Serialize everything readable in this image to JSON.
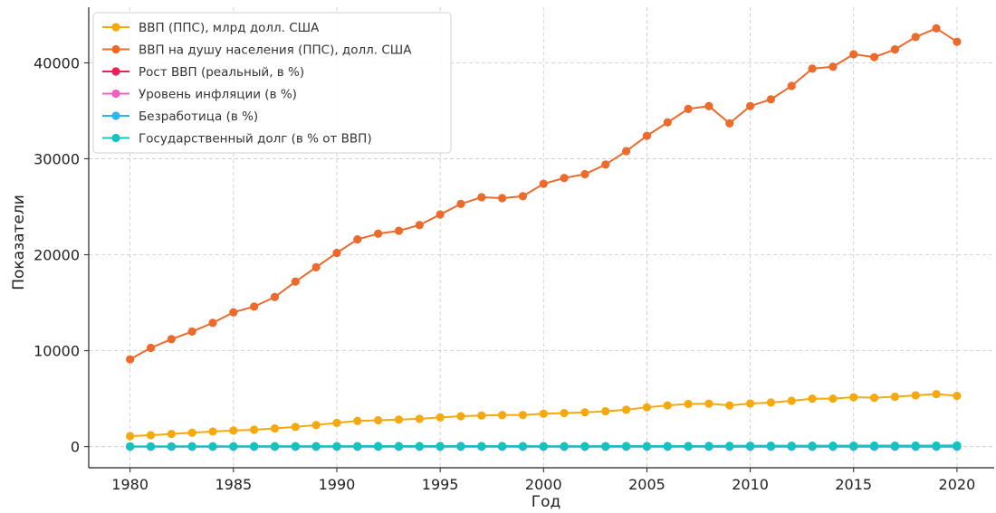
{
  "chart_data": {
    "type": "line",
    "title": "",
    "xlabel": "Год",
    "ylabel": "Показатели",
    "xlim": [
      1978,
      2021.8
    ],
    "ylim": [
      -2200,
      45800
    ],
    "xticks": [
      1980,
      1985,
      1990,
      1995,
      2000,
      2005,
      2010,
      2015,
      2020
    ],
    "yticks": [
      0,
      10000,
      20000,
      30000,
      40000
    ],
    "grid": true,
    "legend_position": "top-left",
    "x": [
      1980,
      1981,
      1982,
      1983,
      1984,
      1985,
      1986,
      1987,
      1988,
      1989,
      1990,
      1991,
      1992,
      1993,
      1994,
      1995,
      1996,
      1997,
      1998,
      1999,
      2000,
      2001,
      2002,
      2003,
      2004,
      2005,
      2006,
      2007,
      2008,
      2009,
      2010,
      2011,
      2012,
      2013,
      2014,
      2015,
      2016,
      2017,
      2018,
      2019,
      2020
    ],
    "series": [
      {
        "name": "ВВП (ППС), млрд долл. США",
        "color": "#f5a90f",
        "values": [
          1100,
          1200,
          1330,
          1450,
          1580,
          1680,
          1760,
          1900,
          2060,
          2250,
          2480,
          2680,
          2750,
          2820,
          2900,
          3050,
          3170,
          3250,
          3290,
          3300,
          3430,
          3500,
          3580,
          3680,
          3850,
          4100,
          4300,
          4450,
          4480,
          4300,
          4500,
          4600,
          4780,
          5000,
          5000,
          5150,
          5100,
          5200,
          5350,
          5480,
          5300
        ]
      },
      {
        "name": "ВВП на душу населения (ППС), долл. США",
        "color": "#ec6a2c",
        "values": [
          9100,
          10300,
          11200,
          12000,
          12900,
          14000,
          14600,
          15600,
          17200,
          18700,
          20200,
          21600,
          22200,
          22500,
          23100,
          24200,
          25300,
          26000,
          25900,
          26100,
          27400,
          28000,
          28400,
          29400,
          30800,
          32400,
          33800,
          35200,
          35500,
          33700,
          35500,
          36200,
          37600,
          39400,
          39600,
          40900,
          40600,
          41400,
          42700,
          43600,
          42200
        ]
      },
      {
        "name": "Рост ВВП (реальный, в %)",
        "color": "#e2245a",
        "values": [
          3.2,
          2.1,
          -0.5,
          4.6,
          6.2,
          4.2,
          3.5,
          3.5,
          4.2,
          3.7,
          1.9,
          -0.1,
          3.5,
          2.8,
          4.0,
          2.7,
          3.8,
          4.4,
          4.5,
          4.8,
          4.1,
          1.0,
          1.7,
          2.8,
          3.9,
          3.5,
          2.9,
          2.0,
          0.1,
          -2.6,
          2.7,
          1.6,
          2.3,
          2.1,
          2.5,
          2.9,
          1.8,
          2.5,
          2.9,
          2.3,
          -3.4
        ]
      },
      {
        "name": "Уровень инфляции (в %)",
        "color": "#f25ec3",
        "values": [
          13.5,
          10.3,
          6.1,
          3.2,
          4.3,
          3.5,
          1.9,
          3.7,
          4.1,
          4.8,
          5.4,
          4.2,
          3.0,
          3.0,
          2.6,
          2.8,
          2.9,
          2.3,
          1.6,
          2.2,
          3.4,
          2.8,
          1.6,
          2.3,
          2.7,
          3.4,
          3.2,
          2.9,
          3.8,
          -0.4,
          1.6,
          3.2,
          2.1,
          1.5,
          1.6,
          0.1,
          1.3,
          2.1,
          2.4,
          1.8,
          1.2
        ]
      },
      {
        "name": "Безработица (в %)",
        "color": "#2eb6e8",
        "values": [
          7.1,
          7.6,
          9.7,
          9.6,
          7.5,
          7.2,
          7.0,
          6.2,
          5.5,
          5.3,
          5.6,
          6.8,
          7.5,
          6.9,
          6.1,
          5.6,
          5.4,
          4.9,
          4.5,
          4.2,
          4.0,
          4.7,
          5.8,
          6.0,
          5.5,
          5.1,
          4.6,
          4.6,
          5.8,
          9.3,
          9.6,
          8.9,
          8.1,
          7.4,
          6.2,
          5.3,
          4.9,
          4.4,
          3.9,
          3.7,
          8.1
        ]
      },
      {
        "name": "Государственный долг (в % от ВВП)",
        "color": "#14c3be",
        "values": [
          30,
          31,
          34,
          38,
          40,
          42,
          48,
          50,
          51,
          52,
          55,
          59,
          62,
          64,
          64,
          64,
          64,
          63,
          61,
          59,
          55,
          54,
          56,
          59,
          61,
          61,
          61,
          62,
          72,
          86,
          95,
          99,
          102,
          104,
          104,
          105,
          107,
          106,
          107,
          108,
          128
        ]
      }
    ]
  }
}
